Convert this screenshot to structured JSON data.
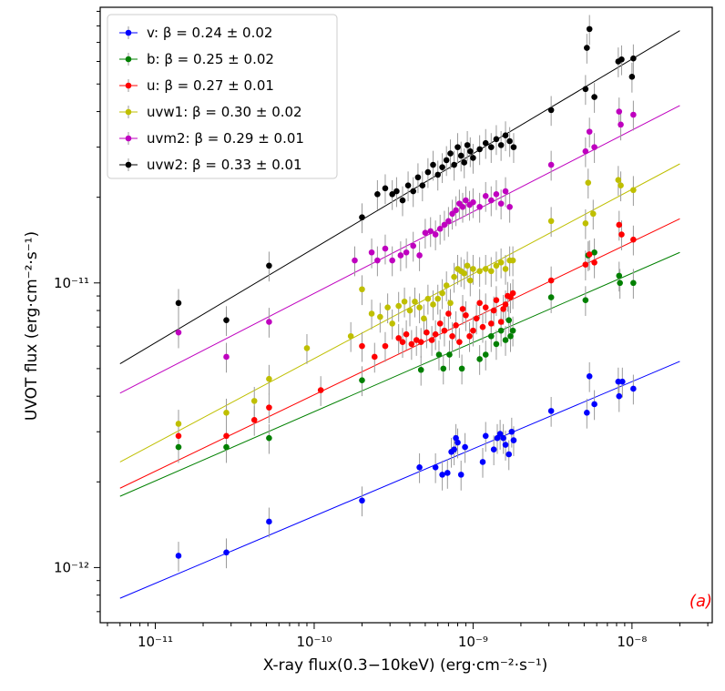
{
  "chart_data": {
    "type": "scatter",
    "title": "",
    "xlabel": "X-ray flux(0.3−10keV) (erg·cm⁻²·s⁻¹)",
    "ylabel": "UVOT flux (erg·cm⁻²·s⁻¹)",
    "xscale": "log",
    "yscale": "log",
    "xlim": [
      4.5e-12,
      3.2e-08
    ],
    "ylim": [
      6.4e-13,
      9.3e-11
    ],
    "x_ticks": [
      {
        "value": 1e-11,
        "label": "10⁻¹¹"
      },
      {
        "value": 1e-10,
        "label": "10⁻¹⁰"
      },
      {
        "value": 1e-09,
        "label": "10⁻⁹"
      },
      {
        "value": 1e-08,
        "label": "10⁻⁸"
      }
    ],
    "y_ticks": [
      {
        "value": 1e-12,
        "label": "10⁻¹²"
      },
      {
        "value": 1e-11,
        "label": "10⁻¹¹"
      }
    ],
    "grid": false,
    "legend_position": "top-left",
    "annotation": "(a)",
    "fit_x_range": [
      6e-12,
      2e-08
    ],
    "series": [
      {
        "name": "v: β = 0.24 ± 0.02",
        "color": "#0000ff",
        "beta": 0.24,
        "fit_y_range": [
          7.8e-13,
          5.3e-12
        ],
        "points": [
          [
            1.4e-11,
            1.1e-12
          ],
          [
            2.8e-11,
            1.13e-12
          ],
          [
            5.2e-11,
            1.45e-12
          ],
          [
            2e-10,
            1.72e-12
          ],
          [
            4.6e-10,
            2.25e-12
          ],
          [
            5.8e-10,
            2.25e-12
          ],
          [
            6.4e-10,
            2.12e-12
          ],
          [
            6.9e-10,
            2.15e-12
          ],
          [
            7.3e-10,
            2.55e-12
          ],
          [
            7.6e-10,
            2.6e-12
          ],
          [
            7.8e-10,
            2.85e-12
          ],
          [
            8e-10,
            2.75e-12
          ],
          [
            8.4e-10,
            2.12e-12
          ],
          [
            8.9e-10,
            2.65e-12
          ],
          [
            1.15e-09,
            2.35e-12
          ],
          [
            1.2e-09,
            2.9e-12
          ],
          [
            1.35e-09,
            2.6e-12
          ],
          [
            1.42e-09,
            2.85e-12
          ],
          [
            1.48e-09,
            2.95e-12
          ],
          [
            1.55e-09,
            2.85e-12
          ],
          [
            1.6e-09,
            2.7e-12
          ],
          [
            1.68e-09,
            2.5e-12
          ],
          [
            1.75e-09,
            3e-12
          ],
          [
            1.8e-09,
            2.8e-12
          ],
          [
            3.1e-09,
            3.55e-12
          ],
          [
            5.2e-09,
            3.5e-12
          ],
          [
            5.4e-09,
            4.7e-12
          ],
          [
            5.8e-09,
            3.75e-12
          ],
          [
            8.2e-09,
            4.5e-12
          ],
          [
            8.3e-09,
            4e-12
          ],
          [
            8.7e-09,
            4.5e-12
          ],
          [
            1.02e-08,
            4.25e-12
          ]
        ]
      },
      {
        "name": "b: β = 0.25 ± 0.02",
        "color": "#008000",
        "beta": 0.25,
        "fit_y_range": [
          1.78e-12,
          1.28e-11
        ],
        "points": [
          [
            1.4e-11,
            2.65e-12
          ],
          [
            2.8e-11,
            2.65e-12
          ],
          [
            5.2e-11,
            2.85e-12
          ],
          [
            2e-10,
            4.55e-12
          ],
          [
            4.7e-10,
            4.95e-12
          ],
          [
            6.1e-10,
            5.6e-12
          ],
          [
            6.5e-10,
            5e-12
          ],
          [
            7.1e-10,
            5.6e-12
          ],
          [
            8.5e-10,
            5e-12
          ],
          [
            1.1e-09,
            5.4e-12
          ],
          [
            1.2e-09,
            5.6e-12
          ],
          [
            1.3e-09,
            6.5e-12
          ],
          [
            1.4e-09,
            6.1e-12
          ],
          [
            1.5e-09,
            6.8e-12
          ],
          [
            1.6e-09,
            6.3e-12
          ],
          [
            1.68e-09,
            7.4e-12
          ],
          [
            1.72e-09,
            6.5e-12
          ],
          [
            1.78e-09,
            6.8e-12
          ],
          [
            3.1e-09,
            8.9e-12
          ],
          [
            5.1e-09,
            8.7e-12
          ],
          [
            5.3e-09,
            1.25e-11
          ],
          [
            5.8e-09,
            1.28e-11
          ],
          [
            8.3e-09,
            1.06e-11
          ],
          [
            8.4e-09,
            1e-11
          ],
          [
            1.02e-08,
            1e-11
          ]
        ]
      },
      {
        "name": "u: β = 0.27 ± 0.01",
        "color": "#ff0000",
        "beta": 0.27,
        "fit_y_range": [
          1.9e-12,
          1.68e-11
        ],
        "points": [
          [
            1.4e-11,
            2.9e-12
          ],
          [
            2.8e-11,
            2.9e-12
          ],
          [
            4.2e-11,
            3.3e-12
          ],
          [
            5.2e-11,
            3.65e-12
          ],
          [
            1.1e-10,
            4.2e-12
          ],
          [
            2e-10,
            6e-12
          ],
          [
            2.4e-10,
            5.5e-12
          ],
          [
            2.8e-10,
            6e-12
          ],
          [
            3.4e-10,
            6.4e-12
          ],
          [
            3.6e-10,
            6.2e-12
          ],
          [
            3.8e-10,
            6.6e-12
          ],
          [
            4.1e-10,
            6.1e-12
          ],
          [
            4.4e-10,
            6.3e-12
          ],
          [
            4.7e-10,
            6.2e-12
          ],
          [
            5.1e-10,
            6.7e-12
          ],
          [
            5.5e-10,
            6.3e-12
          ],
          [
            5.8e-10,
            6.6e-12
          ],
          [
            6.2e-10,
            7.2e-12
          ],
          [
            6.6e-10,
            6.8e-12
          ],
          [
            7e-10,
            7.8e-12
          ],
          [
            7.4e-10,
            6.5e-12
          ],
          [
            7.8e-10,
            7.1e-12
          ],
          [
            8.2e-10,
            6.2e-12
          ],
          [
            8.6e-10,
            8.1e-12
          ],
          [
            9e-10,
            7.7e-12
          ],
          [
            9.5e-10,
            6.5e-12
          ],
          [
            1e-09,
            6.8e-12
          ],
          [
            1.05e-09,
            7.5e-12
          ],
          [
            1.1e-09,
            8.5e-12
          ],
          [
            1.15e-09,
            7e-12
          ],
          [
            1.2e-09,
            8.2e-12
          ],
          [
            1.3e-09,
            7.2e-12
          ],
          [
            1.35e-09,
            8e-12
          ],
          [
            1.4e-09,
            8.7e-12
          ],
          [
            1.5e-09,
            7.3e-12
          ],
          [
            1.55e-09,
            8.1e-12
          ],
          [
            1.6e-09,
            8.4e-12
          ],
          [
            1.65e-09,
            9e-12
          ],
          [
            1.72e-09,
            8.9e-12
          ],
          [
            1.78e-09,
            9.2e-12
          ],
          [
            3.1e-09,
            1.02e-11
          ],
          [
            5.1e-09,
            1.16e-11
          ],
          [
            5.4e-09,
            1.26e-11
          ],
          [
            5.8e-09,
            1.18e-11
          ],
          [
            8.3e-09,
            1.6e-11
          ],
          [
            8.6e-09,
            1.48e-11
          ],
          [
            1.02e-08,
            1.42e-11
          ]
        ]
      },
      {
        "name": "uvw1: β = 0.30 ± 0.02",
        "color": "#bfbf00",
        "beta": 0.3,
        "fit_y_range": [
          2.35e-12,
          2.62e-11
        ],
        "points": [
          [
            1.4e-11,
            3.2e-12
          ],
          [
            2.8e-11,
            3.5e-12
          ],
          [
            4.2e-11,
            3.85e-12
          ],
          [
            5.2e-11,
            4.6e-12
          ],
          [
            9e-11,
            5.9e-12
          ],
          [
            1.7e-10,
            6.5e-12
          ],
          [
            2e-10,
            9.5e-12
          ],
          [
            2.3e-10,
            7.8e-12
          ],
          [
            2.6e-10,
            7.6e-12
          ],
          [
            2.9e-10,
            8.2e-12
          ],
          [
            3.1e-10,
            7.2e-12
          ],
          [
            3.4e-10,
            8.3e-12
          ],
          [
            3.7e-10,
            8.6e-12
          ],
          [
            4e-10,
            8e-12
          ],
          [
            4.3e-10,
            8.6e-12
          ],
          [
            4.6e-10,
            8.2e-12
          ],
          [
            4.9e-10,
            7.5e-12
          ],
          [
            5.2e-10,
            8.8e-12
          ],
          [
            5.6e-10,
            8.4e-12
          ],
          [
            6e-10,
            8.8e-12
          ],
          [
            6.4e-10,
            9.2e-12
          ],
          [
            6.8e-10,
            9.8e-12
          ],
          [
            7.2e-10,
            8.5e-12
          ],
          [
            7.6e-10,
            1.05e-11
          ],
          [
            8e-10,
            1.12e-11
          ],
          [
            8.4e-10,
            1.1e-11
          ],
          [
            8.8e-10,
            1.08e-11
          ],
          [
            9.2e-10,
            1.15e-11
          ],
          [
            9.6e-10,
            1.02e-11
          ],
          [
            1e-09,
            1.12e-11
          ],
          [
            1.1e-09,
            1.1e-11
          ],
          [
            1.2e-09,
            1.12e-11
          ],
          [
            1.3e-09,
            1.1e-11
          ],
          [
            1.4e-09,
            1.15e-11
          ],
          [
            1.5e-09,
            1.18e-11
          ],
          [
            1.6e-09,
            1.12e-11
          ],
          [
            1.7e-09,
            1.2e-11
          ],
          [
            1.78e-09,
            1.2e-11
          ],
          [
            3.1e-09,
            1.65e-11
          ],
          [
            5.1e-09,
            1.62e-11
          ],
          [
            5.3e-09,
            2.25e-11
          ],
          [
            5.7e-09,
            1.75e-11
          ],
          [
            8.2e-09,
            2.3e-11
          ],
          [
            8.5e-09,
            2.2e-11
          ],
          [
            1.02e-08,
            2.12e-11
          ]
        ]
      },
      {
        "name": "uvm2: β = 0.29 ± 0.01",
        "color": "#bf00bf",
        "beta": 0.29,
        "fit_y_range": [
          4.1e-12,
          4.2e-11
        ],
        "points": [
          [
            1.4e-11,
            6.7e-12
          ],
          [
            2.8e-11,
            5.5e-12
          ],
          [
            5.2e-11,
            7.3e-12
          ],
          [
            1.8e-10,
            1.2e-11
          ],
          [
            2.3e-10,
            1.28e-11
          ],
          [
            2.5e-10,
            1.2e-11
          ],
          [
            2.8e-10,
            1.32e-11
          ],
          [
            3.1e-10,
            1.2e-11
          ],
          [
            3.5e-10,
            1.25e-11
          ],
          [
            3.8e-10,
            1.28e-11
          ],
          [
            4.2e-10,
            1.35e-11
          ],
          [
            4.6e-10,
            1.25e-11
          ],
          [
            5e-10,
            1.5e-11
          ],
          [
            5.4e-10,
            1.52e-11
          ],
          [
            5.8e-10,
            1.48e-11
          ],
          [
            6.2e-10,
            1.55e-11
          ],
          [
            6.6e-10,
            1.6e-11
          ],
          [
            7e-10,
            1.65e-11
          ],
          [
            7.4e-10,
            1.75e-11
          ],
          [
            7.8e-10,
            1.8e-11
          ],
          [
            8.2e-10,
            1.9e-11
          ],
          [
            8.6e-10,
            1.85e-11
          ],
          [
            9e-10,
            1.95e-11
          ],
          [
            9.5e-10,
            1.88e-11
          ],
          [
            1e-09,
            1.92e-11
          ],
          [
            1.1e-09,
            1.85e-11
          ],
          [
            1.2e-09,
            2.02e-11
          ],
          [
            1.3e-09,
            1.95e-11
          ],
          [
            1.4e-09,
            2.05e-11
          ],
          [
            1.5e-09,
            1.9e-11
          ],
          [
            1.6e-09,
            2.1e-11
          ],
          [
            1.7e-09,
            1.85e-11
          ],
          [
            3.1e-09,
            2.6e-11
          ],
          [
            5.1e-09,
            2.9e-11
          ],
          [
            5.4e-09,
            3.4e-11
          ],
          [
            5.8e-09,
            3e-11
          ],
          [
            8.3e-09,
            4e-11
          ],
          [
            8.5e-09,
            3.6e-11
          ],
          [
            1.02e-08,
            3.9e-11
          ]
        ]
      },
      {
        "name": "uvw2: β = 0.33 ± 0.01",
        "color": "#000000",
        "beta": 0.33,
        "fit_y_range": [
          5.2e-12,
          7.7e-11
        ],
        "points": [
          [
            1.4e-11,
            8.5e-12
          ],
          [
            2.8e-11,
            7.4e-12
          ],
          [
            5.2e-11,
            1.15e-11
          ],
          [
            2e-10,
            1.7e-11
          ],
          [
            2.5e-10,
            2.05e-11
          ],
          [
            2.8e-10,
            2.15e-11
          ],
          [
            3.1e-10,
            2.05e-11
          ],
          [
            3.3e-10,
            2.1e-11
          ],
          [
            3.6e-10,
            1.95e-11
          ],
          [
            3.9e-10,
            2.2e-11
          ],
          [
            4.2e-10,
            2.1e-11
          ],
          [
            4.5e-10,
            2.35e-11
          ],
          [
            4.8e-10,
            2.2e-11
          ],
          [
            5.2e-10,
            2.45e-11
          ],
          [
            5.6e-10,
            2.6e-11
          ],
          [
            6e-10,
            2.4e-11
          ],
          [
            6.4e-10,
            2.55e-11
          ],
          [
            6.8e-10,
            2.7e-11
          ],
          [
            7.2e-10,
            2.85e-11
          ],
          [
            7.6e-10,
            2.6e-11
          ],
          [
            8e-10,
            3e-11
          ],
          [
            8.4e-10,
            2.8e-11
          ],
          [
            8.8e-10,
            2.65e-11
          ],
          [
            9.2e-10,
            3.05e-11
          ],
          [
            9.6e-10,
            2.9e-11
          ],
          [
            1e-09,
            2.75e-11
          ],
          [
            1.1e-09,
            2.95e-11
          ],
          [
            1.2e-09,
            3.1e-11
          ],
          [
            1.3e-09,
            3e-11
          ],
          [
            1.4e-09,
            3.2e-11
          ],
          [
            1.5e-09,
            3.05e-11
          ],
          [
            1.6e-09,
            3.3e-11
          ],
          [
            1.7e-09,
            3.15e-11
          ],
          [
            1.8e-09,
            3e-11
          ],
          [
            3.1e-09,
            4.05e-11
          ],
          [
            5.1e-09,
            4.8e-11
          ],
          [
            5.2e-09,
            6.7e-11
          ],
          [
            5.4e-09,
            7.8e-11
          ],
          [
            5.8e-09,
            4.5e-11
          ],
          [
            8.2e-09,
            6e-11
          ],
          [
            8.6e-09,
            6.1e-11
          ],
          [
            1e-08,
            5.3e-11
          ],
          [
            1.02e-08,
            6.15e-11
          ]
        ]
      }
    ]
  }
}
